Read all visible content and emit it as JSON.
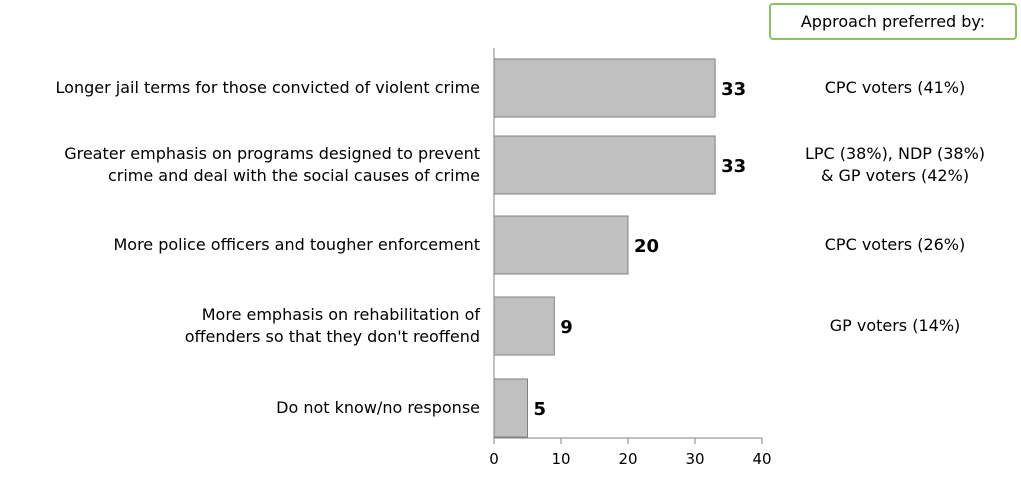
{
  "preference_header": "Approach preferred by:",
  "chart_data": {
    "type": "bar",
    "orientation": "horizontal",
    "categories": [
      "Longer jail terms for those convicted of violent crime",
      "Greater emphasis on programs designed to prevent\ncrime and deal with  the social causes of crime",
      "More police officers and tougher enforcement",
      "More emphasis on rehabilitation of\noffenders so that they don't reoffend",
      "Do not know/no response"
    ],
    "values": [
      33,
      33,
      20,
      9,
      5
    ],
    "data_labels": [
      "33",
      "33",
      "20",
      "9",
      "5"
    ],
    "preferred_by": [
      "CPC voters (41%)",
      "LPC (38%), NDP (38%)\n& GP voters (42%)",
      "CPC voters (26%)",
      "GP voters (14%)",
      ""
    ],
    "xlim": [
      0,
      40
    ],
    "xticks": [
      "0",
      "10",
      "20",
      "30",
      "40"
    ],
    "bar_color": "#c0c0c0",
    "bar_border_color": "#808080",
    "grid": false,
    "legend": "none"
  }
}
